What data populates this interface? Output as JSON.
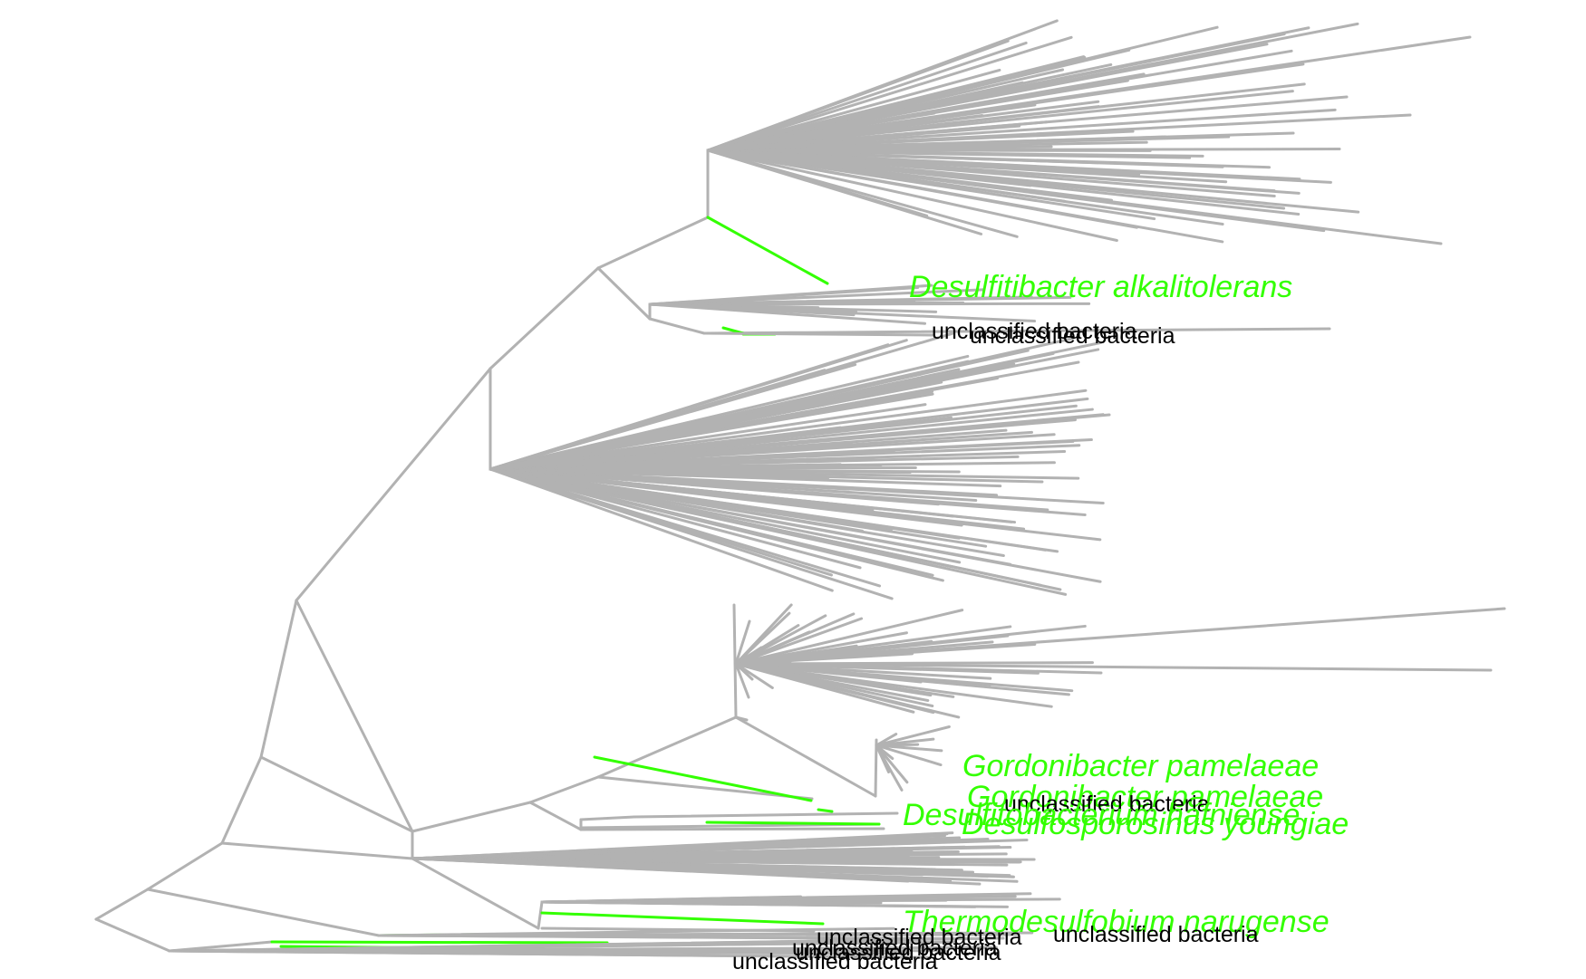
{
  "colors": {
    "branch": "#b2b2b2",
    "highlight": "#33ff00",
    "unclassified_text": "#000000"
  },
  "labels": {
    "desulfitibacter": "Desulfitibacter alkalitolerans",
    "gordonibacter_1": "Gordonibacter pamelaeae",
    "gordonibacter_2": "Gordonibacter pamelaeae",
    "desulfosporosinus": "Desulfosporosinus youngiae",
    "overlap_green": "Desulfitobacterium hafniense",
    "thermodesulfobium": "Thermodesulfobium narugense",
    "unclassified": "unclassified bacteria"
  }
}
